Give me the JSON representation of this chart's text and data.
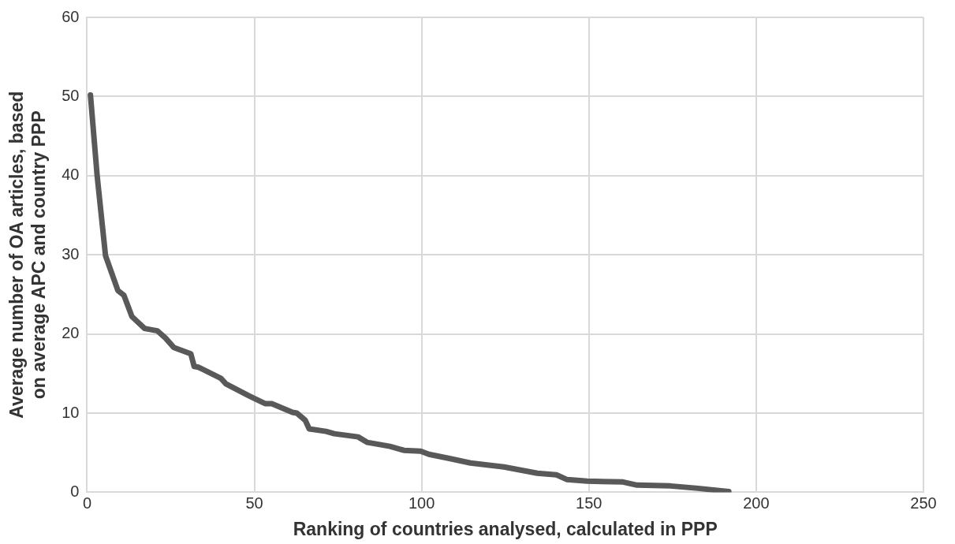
{
  "chart_data": {
    "type": "line",
    "xlabel": "Ranking of countries analysed, calculated in PPP",
    "ylabel": "Average number of OA articles, based\non average APC and country PPP",
    "xlim": [
      0,
      250
    ],
    "xticks": [
      0,
      50,
      100,
      150,
      200,
      250
    ],
    "ylim": [
      0,
      60
    ],
    "yticks": [
      0,
      10,
      20,
      30,
      40,
      50,
      60
    ],
    "grid": true,
    "legend": false,
    "marker": "none",
    "line_style": "solid",
    "series": [
      {
        "color": "#595959",
        "x": [
          1,
          3,
          5.5,
          9.2,
          11,
          13.4,
          15.4,
          17.2,
          21,
          23.4,
          25.9,
          31,
          32,
          33.3,
          40,
          41.5,
          48.3,
          53.2,
          55.2,
          61.4,
          62.7,
          65.2,
          66.4,
          71.4,
          73.9,
          81,
          83.8,
          90.5,
          94.7,
          99.7,
          102.2,
          108,
          114.6,
          124.6,
          134.6,
          140.3,
          143.5,
          149.5,
          160.2,
          164.4,
          174.4,
          182.6,
          191.8
        ],
        "values": [
          50.2,
          40,
          29.9,
          25.5,
          24.9,
          22.2,
          21.4,
          20.7,
          20.4,
          19.5,
          18.3,
          17.5,
          15.9,
          15.8,
          14.4,
          13.7,
          12.2,
          11.2,
          11.2,
          10.1,
          10,
          9.1,
          8,
          7.7,
          7.4,
          7,
          6.3,
          5.8,
          5.3,
          5.2,
          4.8,
          4.3,
          3.7,
          3.2,
          2.4,
          2.2,
          1.6,
          1.4,
          1.3,
          0.9,
          0.8,
          0.5,
          0.1
        ]
      }
    ]
  }
}
